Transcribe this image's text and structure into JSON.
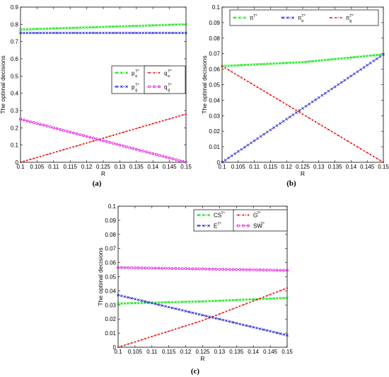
{
  "chart_data": [
    {
      "panel_label": "(a)",
      "type": "line",
      "xlabel": "R",
      "ylabel": "The optimal decisions",
      "xlim": [
        0.1,
        0.15
      ],
      "ylim": [
        0,
        0.9
      ],
      "xticks": [
        "0.1",
        "0.105",
        "0.11",
        "0.115",
        "0.12",
        "0.125",
        "0.13",
        "0.135",
        "0.14",
        "0.145",
        "0.15"
      ],
      "yticks": [
        "0",
        "0.1",
        "0.2",
        "0.3",
        "0.4",
        "0.5",
        "0.6",
        "0.7",
        "0.8",
        "0.9"
      ],
      "grid": false,
      "legend_placement": "center-right",
      "series": [
        {
          "name": "p",
          "sub": "e",
          "sup": "T*",
          "color": "#00e000",
          "marker": "x",
          "x": [
            0.1,
            0.15
          ],
          "y": [
            0.77,
            0.8
          ]
        },
        {
          "name": "p",
          "sub": "g",
          "sup": "T*",
          "color": "#1f1fd0",
          "marker": "x",
          "x": [
            0.1,
            0.15
          ],
          "y": [
            0.75,
            0.75
          ]
        },
        {
          "name": "q",
          "sub": "e",
          "sup": "T*",
          "color": "#e81010",
          "marker": "dot",
          "x": [
            0.1,
            0.15
          ],
          "y": [
            0.0,
            0.28
          ]
        },
        {
          "name": "q",
          "sub": "g",
          "sup": "T*",
          "color": "#e020e0",
          "marker": "circle",
          "x": [
            0.1,
            0.15
          ],
          "y": [
            0.25,
            0.0
          ]
        }
      ]
    },
    {
      "panel_label": "(b)",
      "type": "line",
      "xlabel": "R",
      "ylabel": "The optimal decisions",
      "xlim": [
        0.1,
        0.15
      ],
      "ylim": [
        0,
        0.1
      ],
      "xticks": [
        "0.1",
        "0.105",
        "0.11",
        "0.115",
        "0.12",
        "0.125",
        "0.13",
        "0.135",
        "0.14",
        "0.145",
        "0.15"
      ],
      "yticks": [
        "0",
        "0.01",
        "0.02",
        "0.03",
        "0.04",
        "0.05",
        "0.06",
        "0.07",
        "0.08",
        "0.09",
        "0.1"
      ],
      "grid": false,
      "legend_placement": "top",
      "series": [
        {
          "name": "π",
          "sub": "",
          "sup": "T*",
          "color": "#00e000",
          "marker": "x",
          "x": [
            0.1,
            0.125,
            0.15
          ],
          "y": [
            0.062,
            0.0645,
            0.0695
          ]
        },
        {
          "name": "π",
          "sub": "e",
          "sup": "T*",
          "color": "#1f1fd0",
          "marker": "x",
          "x": [
            0.1,
            0.15
          ],
          "y": [
            0.0,
            0.0695
          ]
        },
        {
          "name": "π",
          "sub": "g",
          "sup": "T*",
          "color": "#e81010",
          "marker": "dot",
          "x": [
            0.1,
            0.15
          ],
          "y": [
            0.062,
            0.0
          ]
        }
      ]
    },
    {
      "panel_label": "(c)",
      "type": "line",
      "xlabel": "R",
      "ylabel": "The optimal decisions",
      "xlim": [
        0.1,
        0.15
      ],
      "ylim": [
        0,
        0.1
      ],
      "xticks": [
        "0.1",
        "0.105",
        "0.11",
        "0.115",
        "0.12",
        "0.125",
        "0.13",
        "0.135",
        "0.14",
        "0.145",
        "0.15"
      ],
      "yticks": [
        "0",
        "0.01",
        "0.02",
        "0.03",
        "0.04",
        "0.05",
        "0.06",
        "0.07",
        "0.08",
        "0.09",
        "0.1"
      ],
      "grid": false,
      "legend_placement": "top-right",
      "series": [
        {
          "name": "CS",
          "sub": "",
          "sup": "T*",
          "color": "#00e000",
          "marker": "x",
          "x": [
            0.1,
            0.125,
            0.15
          ],
          "y": [
            0.031,
            0.0325,
            0.035
          ]
        },
        {
          "name": "G",
          "sub": "",
          "sup": "T*",
          "color": "#e81010",
          "marker": "dot",
          "x": [
            0.1,
            0.125,
            0.15
          ],
          "y": [
            0.0,
            0.019,
            0.042
          ]
        },
        {
          "name": "E",
          "sub": "",
          "sup": "T*",
          "color": "#1f1fd0",
          "marker": "x",
          "x": [
            0.1,
            0.15
          ],
          "y": [
            0.037,
            0.0085
          ]
        },
        {
          "name": "SW",
          "sub": "",
          "sup": "T*",
          "color": "#e020e0",
          "marker": "circle",
          "x": [
            0.1,
            0.15
          ],
          "y": [
            0.0565,
            0.0545
          ]
        }
      ]
    }
  ]
}
